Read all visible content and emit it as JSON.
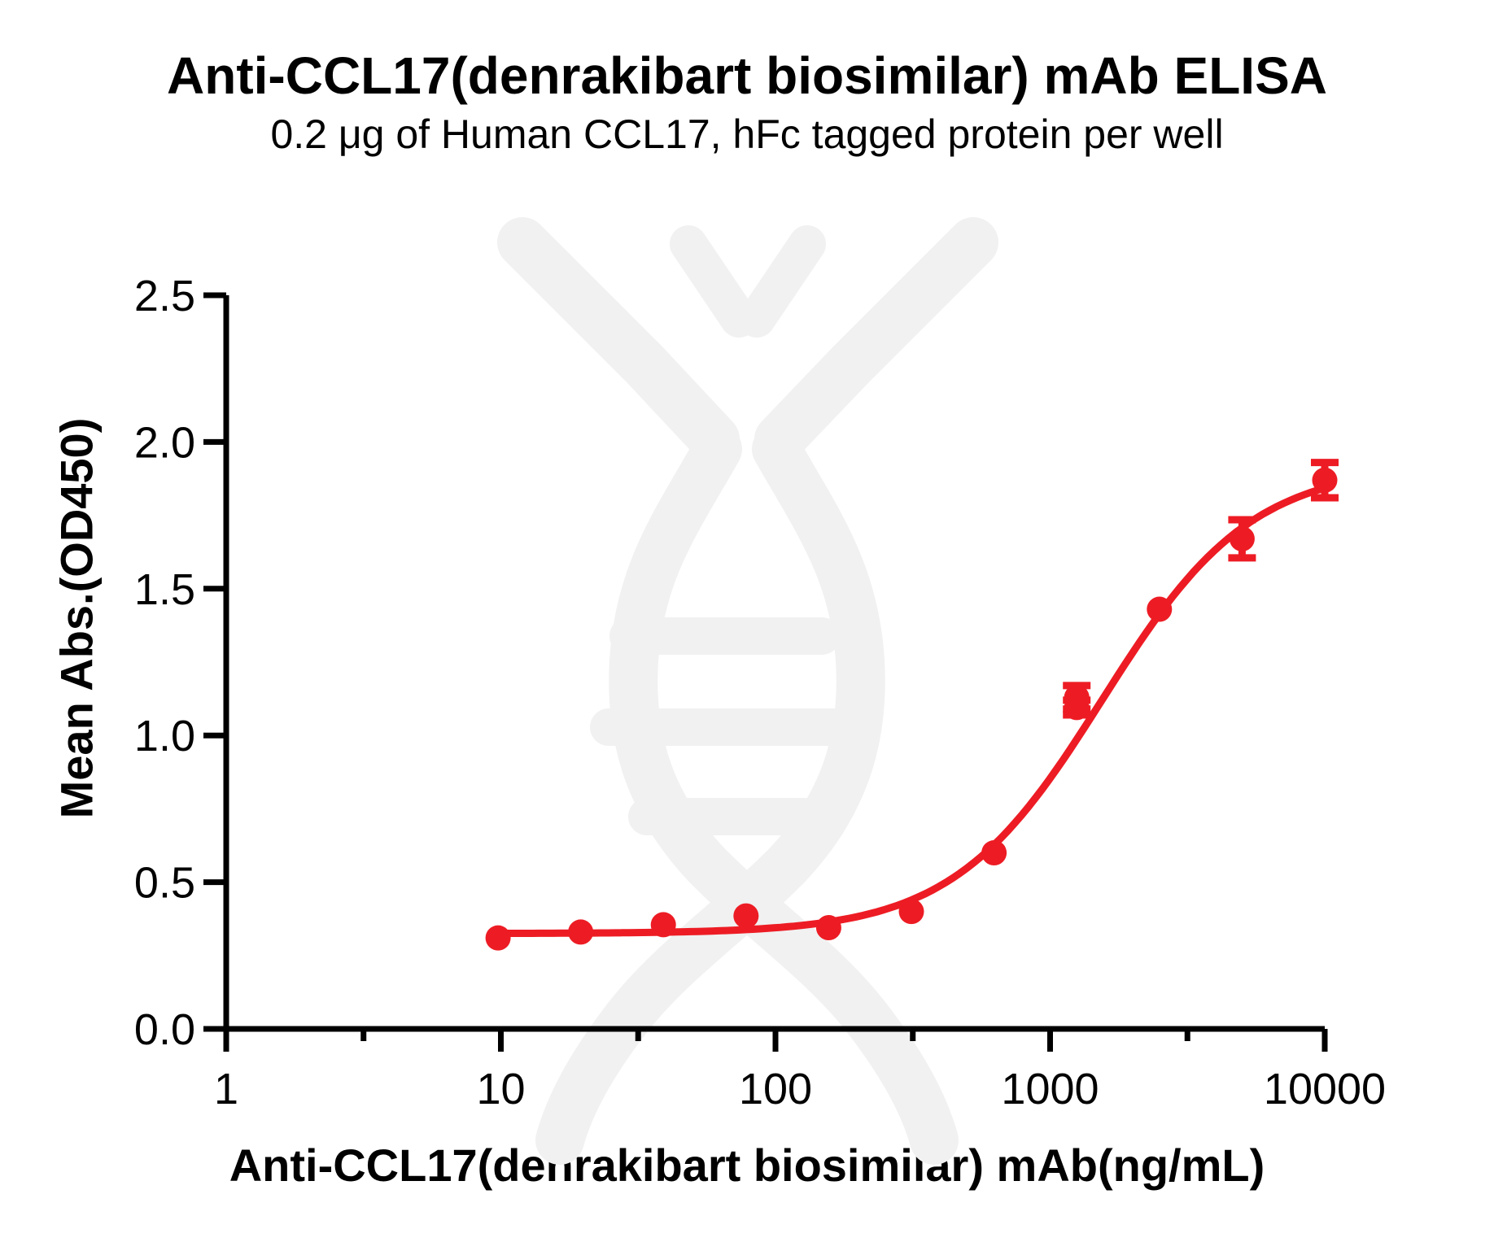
{
  "chart_data": {
    "type": "scatter",
    "title": "Anti-CCL17(denrakibart biosimilar) mAb ELISA",
    "subtitle": "0.2 μg of Human CCL17, hFc tagged protein per well",
    "xlabel": "Anti-CCL17(denrakibart biosimilar) mAb(ng/mL)",
    "ylabel": "Mean Abs.(OD450)",
    "x_scale": "log",
    "xlim": [
      1,
      10000
    ],
    "ylim": [
      0,
      2.5
    ],
    "grid": false,
    "legend": null,
    "x_ticks": [
      {
        "value": 1,
        "label": "1"
      },
      {
        "value": 10,
        "label": "10"
      },
      {
        "value": 100,
        "label": "100"
      },
      {
        "value": 1000,
        "label": "1000"
      },
      {
        "value": 10000,
        "label": "10000"
      }
    ],
    "x_minor_ticks": [
      3.162,
      31.62,
      316.2,
      3162
    ],
    "y_ticks": [
      {
        "value": 0.0,
        "label": "0.0"
      },
      {
        "value": 0.5,
        "label": "0.5"
      },
      {
        "value": 1.0,
        "label": "1.0"
      },
      {
        "value": 1.5,
        "label": "1.5"
      },
      {
        "value": 2.0,
        "label": "2.0"
      },
      {
        "value": 2.5,
        "label": "2.5"
      }
    ],
    "axis_color": "#000000",
    "watermark_color": "#f1f1f1",
    "series": [
      {
        "name": "Anti-CCL17(denrakibart biosimilar) mAb",
        "color": "#ED1C24",
        "marker": "circle",
        "points": [
          {
            "x": 9.77,
            "y": 0.31,
            "err": 0
          },
          {
            "x": 19.53,
            "y": 0.33,
            "err": 0
          },
          {
            "x": 39.06,
            "y": 0.355,
            "err": 0
          },
          {
            "x": 78.13,
            "y": 0.385,
            "err": 0
          },
          {
            "x": 156.25,
            "y": 0.345,
            "err": 0
          },
          {
            "x": 312.5,
            "y": 0.4,
            "err": 0
          },
          {
            "x": 625,
            "y": 0.6,
            "err": 0
          },
          {
            "x": 1250,
            "y": 1.13,
            "err": 0.04
          },
          {
            "x": 1250,
            "y": 1.095,
            "err": 0.025
          },
          {
            "x": 2500,
            "y": 1.43,
            "err": 0
          },
          {
            "x": 5000,
            "y": 1.67,
            "err": 0.065
          },
          {
            "x": 10000,
            "y": 1.87,
            "err": 0.06
          }
        ],
        "fit": {
          "model": "4PL",
          "bottom": 0.325,
          "top": 1.92,
          "ec50": 1550,
          "hill": 1.6,
          "x_start": 9.77,
          "x_end": 10000
        }
      }
    ]
  }
}
